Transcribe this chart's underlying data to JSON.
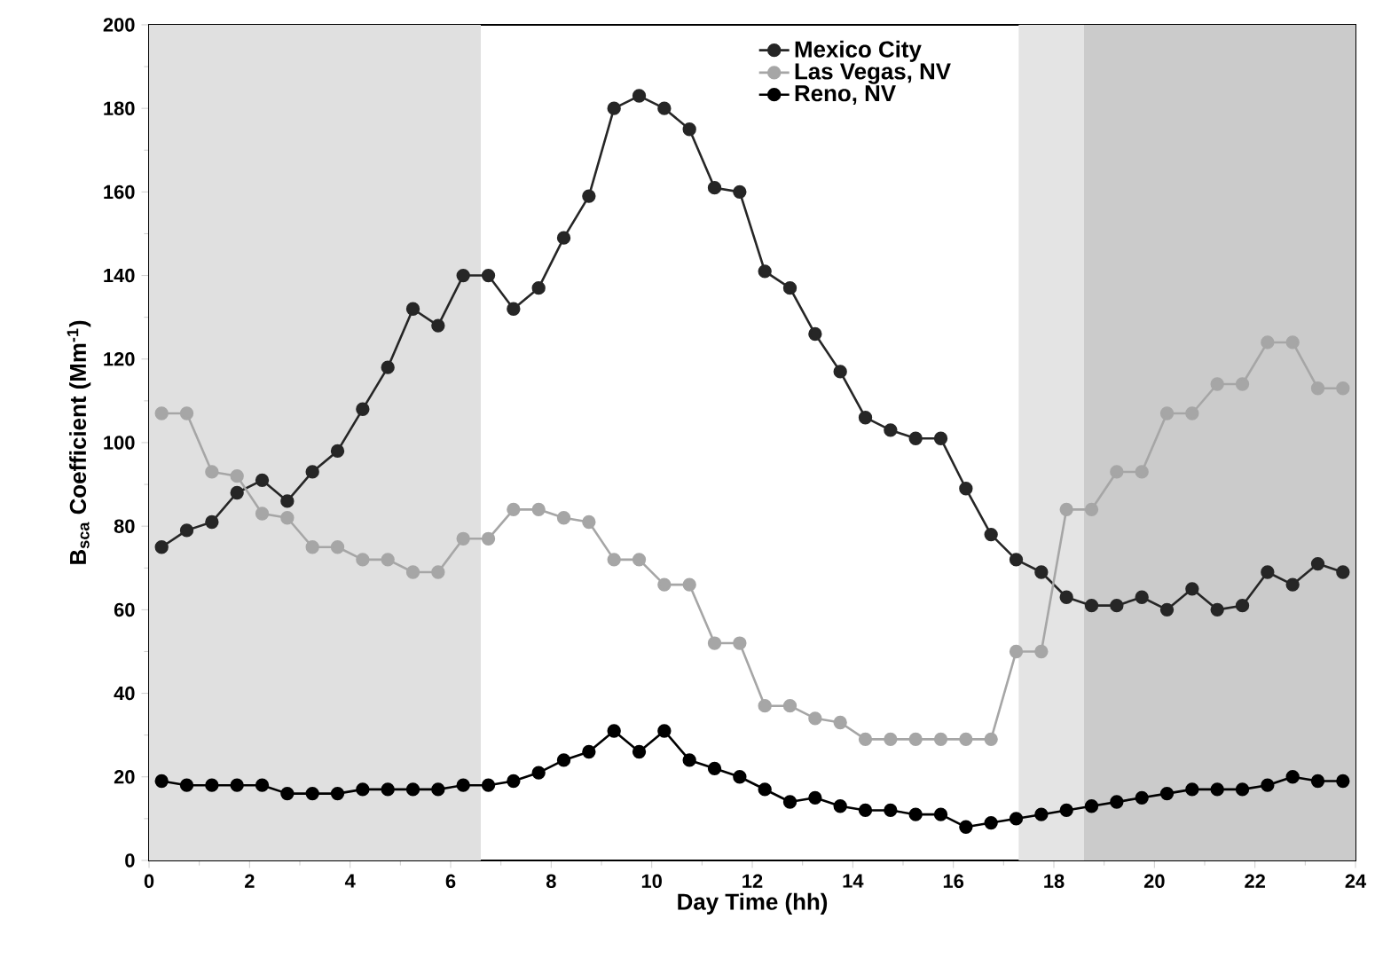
{
  "chart_data": {
    "type": "line",
    "xlabel": "Day Time (hh)",
    "ylabel": "B$_{sca}$ Coefficient (Mm$^{-1}$)",
    "xlim": [
      0,
      24
    ],
    "xticks": [
      0,
      2,
      4,
      6,
      8,
      10,
      12,
      14,
      16,
      18,
      20,
      22,
      24
    ],
    "ylim": [
      0,
      200
    ],
    "yticks": [
      0,
      20,
      40,
      60,
      80,
      100,
      120,
      140,
      160,
      180,
      200
    ],
    "x": [
      0.25,
      0.75,
      1.25,
      1.75,
      2.25,
      2.75,
      3.25,
      3.75,
      4.25,
      4.75,
      5.25,
      5.75,
      6.25,
      6.75,
      7.25,
      7.75,
      8.25,
      8.75,
      9.25,
      9.75,
      10.25,
      10.75,
      11.25,
      11.75,
      12.25,
      12.75,
      13.25,
      13.75,
      14.25,
      14.75,
      15.25,
      15.75,
      16.25,
      16.75,
      17.25,
      17.75,
      18.25,
      18.75,
      19.25,
      19.75,
      20.25,
      20.75,
      21.25,
      21.75,
      22.25,
      22.75,
      23.25,
      23.75
    ],
    "series": [
      {
        "name": "Mexico City",
        "color": "#262626",
        "values": [
          75,
          79,
          81,
          88,
          91,
          86,
          93,
          98,
          108,
          118,
          132,
          128,
          140,
          140,
          132,
          137,
          149,
          159,
          180,
          183,
          180,
          175,
          161,
          160,
          141,
          137,
          126,
          117,
          106,
          103,
          101,
          101,
          89,
          78,
          72,
          69,
          63,
          61,
          61,
          63,
          60,
          65,
          60,
          61,
          69,
          66,
          71,
          69
        ]
      },
      {
        "name": "Las Vegas, NV",
        "color": "#a6a6a6",
        "values": [
          107,
          107,
          93,
          92,
          83,
          82,
          75,
          75,
          72,
          72,
          69,
          69,
          77,
          77,
          84,
          84,
          82,
          81,
          72,
          72,
          66,
          66,
          52,
          52,
          37,
          37,
          34,
          33,
          29,
          29,
          29,
          29,
          29,
          29,
          50,
          50,
          84,
          84,
          93,
          93,
          107,
          107,
          114,
          114,
          124,
          124,
          113,
          113
        ]
      },
      {
        "name": "Reno, NV",
        "color": "#000000",
        "values": [
          19,
          18,
          18,
          18,
          18,
          16,
          16,
          16,
          17,
          17,
          17,
          17,
          18,
          18,
          19,
          21,
          24,
          26,
          31,
          26,
          31,
          24,
          22,
          20,
          17,
          14,
          15,
          13,
          12,
          12,
          11,
          11,
          8,
          9,
          10,
          11,
          12,
          13,
          14,
          15,
          16,
          17,
          17,
          17,
          18,
          20,
          19,
          19
        ]
      }
    ],
    "bands": [
      {
        "axis": "x",
        "from": 0,
        "to": 6.6,
        "color": "#e0e0e0"
      },
      {
        "axis": "x",
        "from": 17.3,
        "to": 18.6,
        "color": "#e4e4e4"
      },
      {
        "axis": "x",
        "from": 18.6,
        "to": 24,
        "color": "#cbcbcb"
      }
    ],
    "marker": "circle",
    "line_style": "solid",
    "legend": "top",
    "grid": false
  }
}
